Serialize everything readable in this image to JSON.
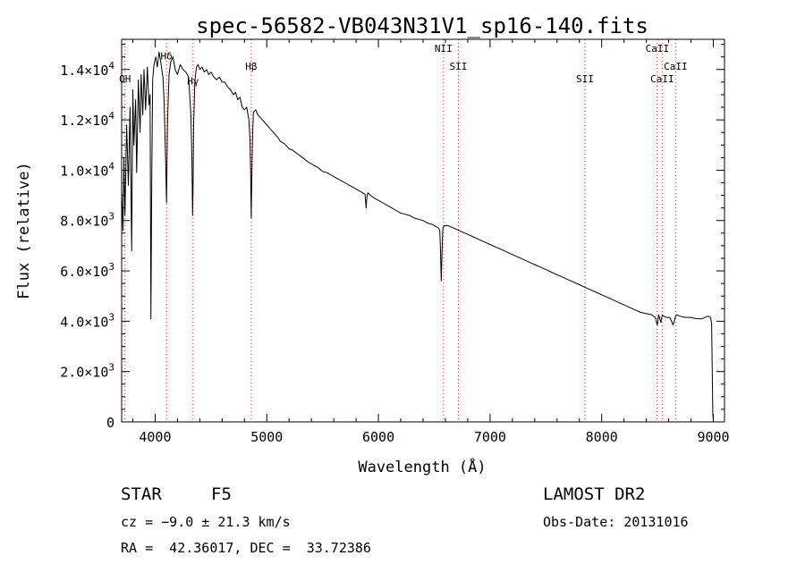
{
  "chart_data": {
    "type": "line",
    "title": "spec-56582-VB043N31V1_sp16-140.fits",
    "xlabel": "Wavelength (Å)",
    "ylabel": "Flux (relative)",
    "xlim": [
      3700,
      9100
    ],
    "ylim": [
      0,
      15200
    ],
    "x_ticks": [
      4000,
      5000,
      6000,
      7000,
      8000,
      9000
    ],
    "x_tick_labels": [
      "4000",
      "5000",
      "6000",
      "7000",
      "8000",
      "9000"
    ],
    "y_ticks": [
      0,
      2000,
      4000,
      6000,
      8000,
      10000,
      12000,
      14000
    ],
    "y_tick_labels": [
      {
        "mant": "0",
        "exp": ""
      },
      {
        "mant": "2.0×10",
        "exp": "3"
      },
      {
        "mant": "4.0×10",
        "exp": "3"
      },
      {
        "mant": "6.0×10",
        "exp": "3"
      },
      {
        "mant": "8.0×10",
        "exp": "3"
      },
      {
        "mant": "1.0×10",
        "exp": "4"
      },
      {
        "mant": "1.2×10",
        "exp": "4"
      },
      {
        "mant": "1.4×10",
        "exp": "4"
      }
    ],
    "grid": false,
    "series": [
      {
        "color": "#000000",
        "x": [
          3700,
          3712,
          3720,
          3730,
          3745,
          3760,
          3775,
          3790,
          3800,
          3810,
          3825,
          3835,
          3850,
          3865,
          3875,
          3889,
          3900,
          3915,
          3930,
          3945,
          3955,
          3962,
          3970,
          3978,
          3990,
          4005,
          4020,
          4035,
          4050,
          4060,
          4070,
          4080,
          4095,
          4102,
          4110,
          4125,
          4140,
          4160,
          4180,
          4200,
          4225,
          4250,
          4275,
          4300,
          4320,
          4330,
          4335,
          4340,
          4345,
          4355,
          4370,
          4385,
          4400,
          4420,
          4440,
          4460,
          4480,
          4500,
          4525,
          4550,
          4575,
          4600,
          4625,
          4650,
          4675,
          4700,
          4720,
          4740,
          4760,
          4780,
          4800,
          4820,
          4840,
          4850,
          4856,
          4861,
          4866,
          4872,
          4880,
          4900,
          4920,
          4940,
          4960,
          4980,
          5000,
          5020,
          5040,
          5060,
          5080,
          5100,
          5120,
          5140,
          5160,
          5180,
          5200,
          5230,
          5260,
          5290,
          5320,
          5350,
          5380,
          5420,
          5460,
          5500,
          5540,
          5580,
          5620,
          5660,
          5700,
          5740,
          5780,
          5820,
          5860,
          5880,
          5890,
          5896,
          5905,
          5930,
          5960,
          6000,
          6040,
          6080,
          6120,
          6160,
          6200,
          6240,
          6280,
          6320,
          6360,
          6400,
          6440,
          6480,
          6500,
          6520,
          6540,
          6550,
          6556,
          6563,
          6570,
          6578,
          6590,
          6620,
          6650,
          6700,
          6750,
          6800,
          6850,
          6900,
          6950,
          7000,
          7050,
          7100,
          7150,
          7200,
          7250,
          7300,
          7350,
          7400,
          7450,
          7500,
          7550,
          7600,
          7650,
          7700,
          7750,
          7800,
          7850,
          7900,
          7950,
          8000,
          8050,
          8100,
          8150,
          8200,
          8250,
          8300,
          8350,
          8400,
          8450,
          8480,
          8498,
          8510,
          8530,
          8542,
          8555,
          8580,
          8610,
          8640,
          8662,
          8675,
          8700,
          8750,
          8800,
          8850,
          8900,
          8950,
          8975,
          8985,
          8990,
          8995,
          9000
        ],
        "y": [
          9200,
          7600,
          10500,
          8200,
          11800,
          9400,
          12500,
          6800,
          13200,
          11000,
          12800,
          9900,
          13600,
          11500,
          13800,
          12200,
          14000,
          12400,
          14100,
          12600,
          13000,
          4100,
          9800,
          13600,
          14200,
          14500,
          14100,
          14700,
          14300,
          14000,
          13700,
          12800,
          10200,
          8700,
          11800,
          13800,
          14300,
          14500,
          14000,
          13800,
          14200,
          14000,
          13900,
          13700,
          12200,
          10400,
          8200,
          9500,
          11800,
          13500,
          14100,
          14200,
          14000,
          14100,
          13900,
          14000,
          13800,
          13900,
          13700,
          13600,
          13700,
          13500,
          13500,
          13300,
          13200,
          13000,
          13100,
          12800,
          12900,
          12500,
          12400,
          12500,
          12000,
          11200,
          9800,
          8100,
          9600,
          11300,
          12300,
          12400,
          12200,
          12100,
          12000,
          11900,
          11800,
          11700,
          11600,
          11500,
          11400,
          11300,
          11150,
          11100,
          11050,
          10950,
          10850,
          10800,
          10700,
          10600,
          10500,
          10400,
          10300,
          10200,
          10100,
          9950,
          9900,
          9800,
          9700,
          9600,
          9500,
          9400,
          9300,
          9200,
          9100,
          9050,
          8500,
          8900,
          9100,
          9000,
          8900,
          8800,
          8700,
          8600,
          8500,
          8400,
          8300,
          8250,
          8200,
          8100,
          8050,
          8000,
          7900,
          7850,
          7800,
          7750,
          7700,
          7600,
          6800,
          5600,
          6800,
          7700,
          7800,
          7800,
          7750,
          7650,
          7550,
          7450,
          7350,
          7250,
          7150,
          7050,
          6950,
          6850,
          6750,
          6650,
          6550,
          6450,
          6350,
          6250,
          6150,
          6050,
          5950,
          5850,
          5750,
          5650,
          5550,
          5450,
          5350,
          5250,
          5150,
          5050,
          4950,
          4850,
          4750,
          4650,
          4550,
          4450,
          4350,
          4300,
          4250,
          4150,
          3850,
          4250,
          3950,
          4250,
          4200,
          4150,
          4150,
          3850,
          4200,
          4250,
          4200,
          4150,
          4150,
          4100,
          4100,
          4200,
          4150,
          3900,
          2000,
          400,
          0
        ]
      }
    ],
    "line_markers": [
      {
        "label": "OH",
        "x": 3730,
        "label_y": 13500
      },
      {
        "label": "Hδ",
        "x": 4102,
        "label_y": 14400
      },
      {
        "label": "Hγ",
        "x": 4340,
        "label_y": 13400
      },
      {
        "label": "Hβ",
        "x": 4861,
        "label_y": 14000
      },
      {
        "label": "NII",
        "x": 6583,
        "label_y": 14700
      },
      {
        "label": "SII",
        "x": 6716,
        "label_y": 14000
      },
      {
        "label": "SII",
        "x": 7850,
        "label_y": 13500
      },
      {
        "label": "CaII",
        "x": 8498,
        "label_y": 14700
      },
      {
        "label": "CaII",
        "x": 8542,
        "label_y": 13500
      },
      {
        "label": "CaII",
        "x": 8662,
        "label_y": 14000
      }
    ],
    "marker_color": "#e03030"
  },
  "info": {
    "object_class": "STAR",
    "subclass": "F5",
    "survey": "LAMOST DR2",
    "cz": "cz = −9.0 ± 21.3 km/s",
    "obs_date": "Obs-Date: 20131016",
    "coords": "RA =  42.36017, DEC =  33.72386"
  }
}
